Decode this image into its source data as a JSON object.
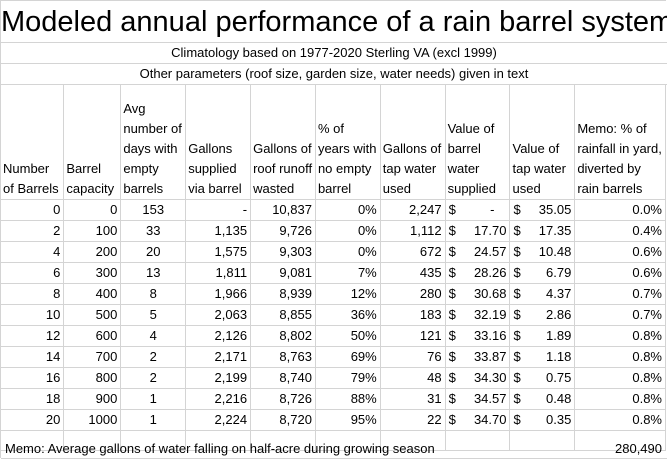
{
  "title": "Modeled annual performance of a rain barrel system",
  "subtitle1": "Climatology based on 1977-2020 Sterling VA (excl 1999)",
  "subtitle2": "Other parameters (roof size, garden size, water needs) given in text",
  "headers": [
    "Number of Barrels",
    "Barrel capacity",
    "Avg number of days with empty barrels",
    "Gallons supplied via barrel",
    "Gallons of roof runoff wasted",
    "% of years with no empty barrel",
    "Gallons of tap water used",
    "Value of barrel water supplied",
    "Value of tap water used",
    "Memo: % of rainfall in yard, diverted by rain barrels"
  ],
  "rows": [
    [
      "0",
      "0",
      "153",
      "-",
      "10,837",
      "0%",
      "2,247",
      "-",
      "35.05",
      "0.0%"
    ],
    [
      "2",
      "100",
      "33",
      "1,135",
      "9,726",
      "0%",
      "1,112",
      "17.70",
      "17.35",
      "0.4%"
    ],
    [
      "4",
      "200",
      "20",
      "1,575",
      "9,303",
      "0%",
      "672",
      "24.57",
      "10.48",
      "0.6%"
    ],
    [
      "6",
      "300",
      "13",
      "1,811",
      "9,081",
      "7%",
      "435",
      "28.26",
      "6.79",
      "0.6%"
    ],
    [
      "8",
      "400",
      "8",
      "1,966",
      "8,939",
      "12%",
      "280",
      "30.68",
      "4.37",
      "0.7%"
    ],
    [
      "10",
      "500",
      "5",
      "2,063",
      "8,855",
      "36%",
      "183",
      "32.19",
      "2.86",
      "0.7%"
    ],
    [
      "12",
      "600",
      "4",
      "2,126",
      "8,802",
      "50%",
      "121",
      "33.16",
      "1.89",
      "0.8%"
    ],
    [
      "14",
      "700",
      "2",
      "2,171",
      "8,763",
      "69%",
      "76",
      "33.87",
      "1.18",
      "0.8%"
    ],
    [
      "16",
      "800",
      "2",
      "2,199",
      "8,740",
      "79%",
      "48",
      "34.30",
      "0.75",
      "0.8%"
    ],
    [
      "18",
      "900",
      "1",
      "2,216",
      "8,726",
      "88%",
      "31",
      "34.57",
      "0.48",
      "0.8%"
    ],
    [
      "20",
      "1000",
      "1",
      "2,224",
      "8,720",
      "95%",
      "22",
      "34.70",
      "0.35",
      "0.8%"
    ]
  ],
  "currency_symbol": "$",
  "footer": {
    "label": "Memo:  Average gallons of water falling on half-acre during growing season",
    "value": "280,490"
  }
}
